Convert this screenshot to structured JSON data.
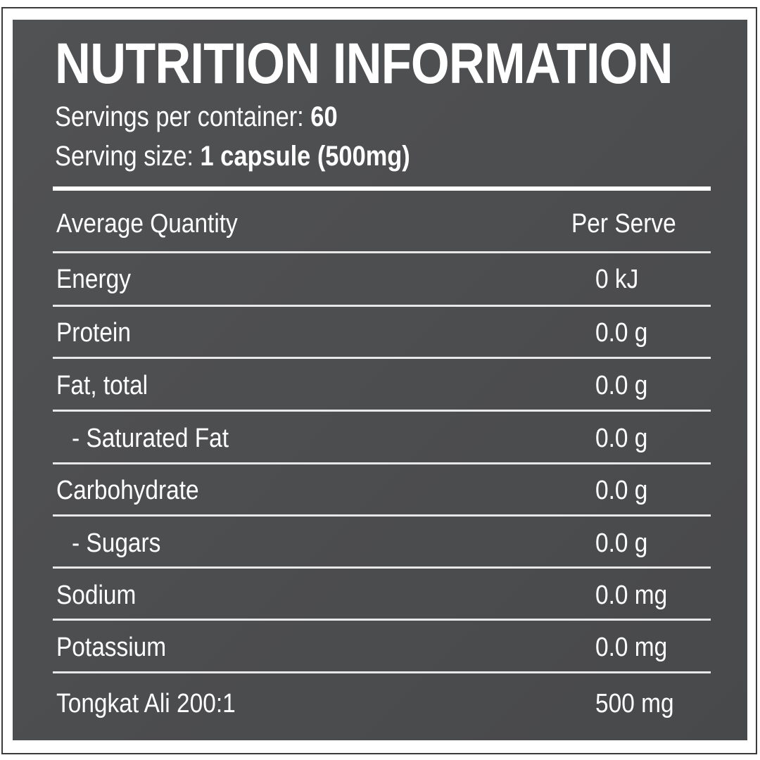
{
  "title": "NUTRITION INFORMATION",
  "servings": {
    "label": "Servings per container:",
    "value": "60"
  },
  "serving_size": {
    "label": "Serving size:",
    "value": "1 capsule (500mg)"
  },
  "header": {
    "name": "Average Quantity",
    "value": "Per Serve"
  },
  "rows": [
    {
      "name": "Energy",
      "value": "0 kJ"
    },
    {
      "name": "Protein",
      "value": "0.0 g"
    },
    {
      "name": "Fat, total",
      "value": "0.0 g"
    },
    {
      "name": "- Saturated Fat",
      "value": "0.0 g"
    },
    {
      "name": "Carbohydrate",
      "value": "0.0 g"
    },
    {
      "name": "- Sugars",
      "value": "0.0 g"
    },
    {
      "name": "Sodium",
      "value": "0.0 mg"
    },
    {
      "name": "Potassium",
      "value": "0.0 mg"
    },
    {
      "name": "Tongkat Ali 200:1",
      "value": "500 mg"
    }
  ],
  "colors": {
    "panel": "#4b4c4e",
    "text": "#ffffff"
  }
}
